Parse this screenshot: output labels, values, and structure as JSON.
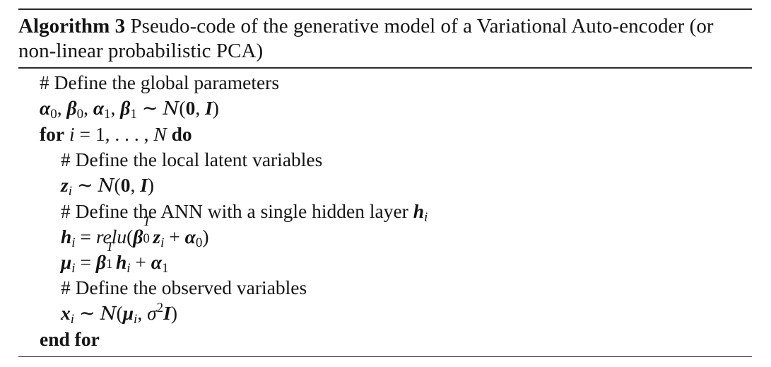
{
  "caption": {
    "label": "Algorithm 3",
    "text": "Pseudo-code of the generative model of a Variational Auto-encoder (or non-linear probabilistic PCA)"
  },
  "lines": [
    {
      "comment": "# Define the global parameters"
    },
    {
      "math": "α0, β0, α1, β1 ∼ N(0, I)"
    },
    {
      "keyword_for": "for",
      "loop_range": "i = 1, . . . , N",
      "keyword_do": "do"
    },
    {
      "comment": "# Define the local latent variables"
    },
    {
      "math": "zi ∼ N(0, I)"
    },
    {
      "comment": "# Define the ANN with a single hidden layer hi"
    },
    {
      "math": "hi = relu(β0T zi + α0)"
    },
    {
      "math": "μi = β1T hi + α1"
    },
    {
      "comment": "# Define the observed variables"
    },
    {
      "math": "xi ∼ N(μi, σ2 I)"
    },
    {
      "keyword_end": "end for"
    }
  ]
}
